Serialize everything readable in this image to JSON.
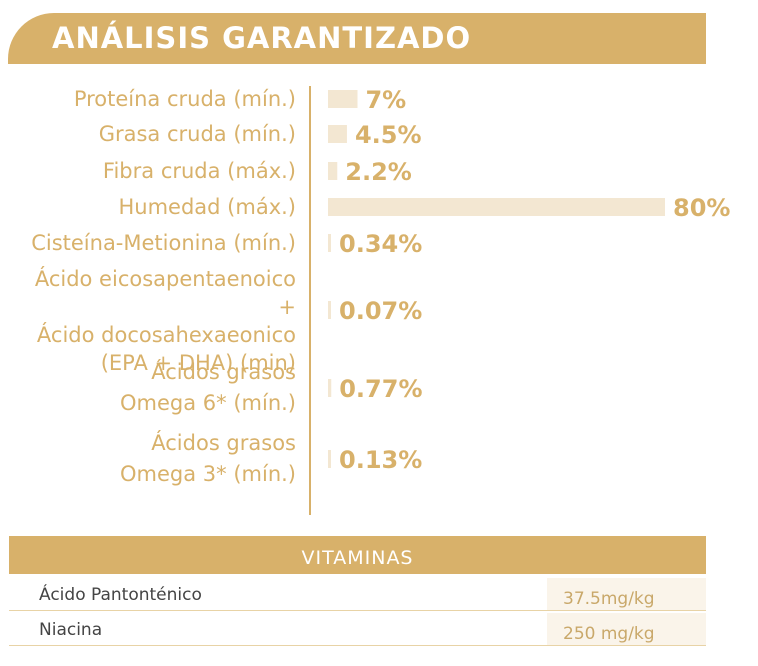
{
  "title": "ANÁLISIS GARANTIZADO",
  "chart_data": {
    "type": "bar",
    "orientation": "horizontal",
    "title": "ANÁLISIS GARANTIZADO",
    "categories": [
      [
        "Proteína cruda (mín.)"
      ],
      [
        "Grasa cruda (mín.)"
      ],
      [
        "Fibra cruda (máx.)"
      ],
      [
        "Humedad (máx.)"
      ],
      [
        "Cisteína-Metionina (mín.)"
      ],
      [
        "Ácido eicosapentaenoico",
        "+",
        "Ácido docosahexaeonico",
        "(EPA + DHA) (min)"
      ],
      [
        "Ácidos grasos",
        "Omega 6* (mín.)"
      ],
      [
        "Ácidos grasos",
        "Omega 3* (mín.)"
      ]
    ],
    "values": [
      7,
      4.5,
      2.2,
      80,
      0.34,
      0.07,
      0.77,
      0.13
    ],
    "value_labels": [
      "7%",
      "4.5%",
      "2.2%",
      "80%",
      "0.34%",
      "0.07%",
      "0.77%",
      "0.13%"
    ],
    "unit": "%",
    "xlim": [
      0,
      80
    ],
    "colors": {
      "accent": "#d8b16a",
      "bar": "#f3e7d2"
    }
  },
  "vitamins": {
    "header": "VITAMINAS",
    "rows": [
      {
        "name": "Ácido Pantonténico",
        "value": "37.5mg/kg"
      },
      {
        "name": "Niacina",
        "value": "250 mg/kg"
      }
    ]
  }
}
